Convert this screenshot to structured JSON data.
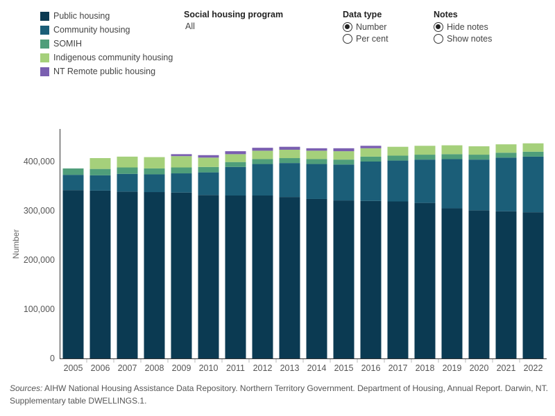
{
  "legend": {
    "items": [
      {
        "label": "Public housing",
        "color": "#0b3a52"
      },
      {
        "label": "Community housing",
        "color": "#1b5e78"
      },
      {
        "label": "SOMIH",
        "color": "#4f9e7a"
      },
      {
        "label": "Indigenous community housing",
        "color": "#a5d07b"
      },
      {
        "label": "NT Remote public housing",
        "color": "#7a5fb0"
      }
    ]
  },
  "filters": {
    "program": {
      "title": "Social housing program",
      "value": "All"
    },
    "data_type": {
      "title": "Data type",
      "options": [
        "Number",
        "Per cent"
      ],
      "selected": "Number"
    },
    "notes": {
      "title": "Notes",
      "options": [
        "Hide notes",
        "Show notes"
      ],
      "selected": "Hide notes"
    }
  },
  "source": {
    "prefix": "Sources:",
    "text": " AIHW National Housing Assistance Data Repository. Northern Territory Government. Department of Housing, Annual Report. Darwin, NT.  Supplementary table DWELLINGS.1."
  },
  "chart_data": {
    "type": "bar",
    "stacked": true,
    "ylabel": "Number",
    "ylim": [
      0,
      460000
    ],
    "yticks": [
      0,
      100000,
      200000,
      300000,
      400000
    ],
    "ytick_labels": [
      "0",
      "100,000",
      "200,000",
      "300,000",
      "400,000"
    ],
    "grid": false,
    "legend_position": "top-left",
    "categories": [
      "2005",
      "2006",
      "2007",
      "2008",
      "2009",
      "2010",
      "2011",
      "2012",
      "2013",
      "2014",
      "2015",
      "2016",
      "2017",
      "2018",
      "2019",
      "2020",
      "2021",
      "2022"
    ],
    "series": [
      {
        "name": "Public housing",
        "color": "#0b3a52",
        "values": [
          342000,
          341000,
          339000,
          338000,
          337000,
          332000,
          331000,
          331000,
          328000,
          324000,
          321000,
          320000,
          319000,
          316000,
          305000,
          301000,
          299000,
          297000
        ]
      },
      {
        "name": "Community housing",
        "color": "#1b5e78",
        "values": [
          31000,
          31000,
          36000,
          36000,
          39000,
          46000,
          58000,
          64000,
          69000,
          71000,
          73000,
          80000,
          83000,
          88000,
          100000,
          103000,
          109000,
          113000
        ]
      },
      {
        "name": "SOMIH",
        "color": "#4f9e7a",
        "values": [
          13000,
          13000,
          13000,
          12000,
          12000,
          11000,
          10000,
          10000,
          10000,
          10000,
          10000,
          10000,
          10000,
          10000,
          10000,
          10000,
          10000,
          10000
        ]
      },
      {
        "name": "Indigenous community housing",
        "color": "#a5d07b",
        "values": [
          0,
          22000,
          22000,
          23000,
          23000,
          19000,
          16000,
          17000,
          17000,
          17000,
          17000,
          17000,
          18000,
          18000,
          18000,
          17000,
          17000,
          17000
        ]
      },
      {
        "name": "NT Remote public housing",
        "color": "#7a5fb0",
        "values": [
          0,
          0,
          0,
          0,
          4000,
          5000,
          6000,
          6000,
          6000,
          5000,
          6000,
          5000,
          0,
          0,
          0,
          0,
          0,
          0
        ]
      }
    ]
  }
}
